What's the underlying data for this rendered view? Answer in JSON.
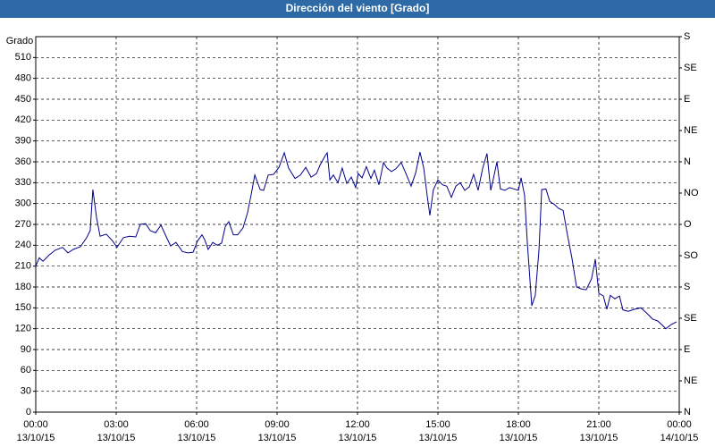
{
  "chart_data": {
    "type": "line",
    "title": "Dirección del viento [Grado]",
    "ylabel": "Grado",
    "x": [
      0,
      0.13,
      0.27,
      0.5,
      0.73,
      1,
      1.2,
      1.4,
      1.67,
      1.9,
      2.03,
      2.13,
      2.27,
      2.4,
      2.63,
      2.87,
      3.03,
      3.27,
      3.5,
      3.73,
      3.9,
      4.1,
      4.27,
      4.47,
      4.67,
      4.87,
      5.03,
      5.23,
      5.47,
      5.67,
      5.87,
      6.03,
      6.2,
      6.3,
      6.43,
      6.6,
      6.77,
      6.93,
      7.07,
      7.2,
      7.37,
      7.53,
      7.73,
      7.9,
      8.03,
      8.17,
      8.37,
      8.5,
      8.67,
      8.87,
      9.07,
      9.27,
      9.43,
      9.67,
      9.87,
      10.07,
      10.27,
      10.47,
      10.6,
      10.8,
      10.87,
      10.97,
      11.1,
      11.27,
      11.43,
      11.6,
      11.77,
      11.93,
      12.03,
      12.17,
      12.33,
      12.5,
      12.63,
      12.8,
      12.97,
      13.1,
      13.27,
      13.43,
      13.63,
      13.83,
      14,
      14.17,
      14.33,
      14.47,
      14.6,
      14.7,
      14.83,
      15,
      15.17,
      15.33,
      15.5,
      15.67,
      15.83,
      16,
      16.17,
      16.33,
      16.5,
      16.67,
      16.83,
      16.97,
      17.07,
      17.2,
      17.33,
      17.5,
      17.67,
      17.83,
      18,
      18.1,
      18.23,
      18.33,
      18.5,
      18.63,
      18.77,
      18.87,
      19.03,
      19.17,
      19.33,
      19.5,
      19.67,
      19.83,
      20,
      20.17,
      20.37,
      20.53,
      20.73,
      20.87,
      21,
      21.17,
      21.3,
      21.43,
      21.6,
      21.77,
      21.9,
      22.1,
      22.33,
      22.57,
      22.77,
      23,
      23.2,
      23.37,
      23.5,
      23.7,
      23.9
    ],
    "series": [
      {
        "name": "Dirección del viento",
        "color": "#00008b",
        "values": [
          210,
          222,
          217,
          226,
          233,
          237,
          229,
          234,
          238,
          251,
          261,
          320,
          279,
          253,
          256,
          246,
          237,
          251,
          253,
          252,
          270,
          271,
          261,
          258,
          269,
          252,
          239,
          244,
          231,
          229,
          230,
          246,
          255,
          248,
          234,
          244,
          240,
          243,
          267,
          274,
          255,
          255,
          265,
          287,
          312,
          341,
          320,
          319,
          341,
          342,
          352,
          373,
          351,
          336,
          341,
          352,
          338,
          343,
          355,
          369,
          373,
          334,
          341,
          330,
          351,
          329,
          338,
          323,
          343,
          337,
          353,
          336,
          348,
          327,
          359,
          351,
          346,
          350,
          359,
          341,
          325,
          344,
          374,
          351,
          311,
          283,
          320,
          334,
          327,
          325,
          309,
          325,
          330,
          319,
          324,
          342,
          319,
          351,
          372,
          319,
          336,
          360,
          321,
          319,
          323,
          321,
          319,
          337,
          312,
          246,
          153,
          168,
          234,
          320,
          321,
          303,
          299,
          293,
          290,
          255,
          221,
          180,
          177,
          176,
          192,
          220,
          171,
          167,
          148,
          168,
          163,
          167,
          147,
          145,
          148,
          150,
          143,
          134,
          131,
          125,
          120,
          126,
          130
        ]
      }
    ],
    "xlim": [
      0,
      24
    ],
    "xticks": [
      {
        "value": 0,
        "label": "00:00",
        "date": "13/10/15"
      },
      {
        "value": 3,
        "label": "03:00",
        "date": "13/10/15"
      },
      {
        "value": 6,
        "label": "06:00",
        "date": "13/10/15"
      },
      {
        "value": 9,
        "label": "09:00",
        "date": "13/10/15"
      },
      {
        "value": 12,
        "label": "12:00",
        "date": "13/10/15"
      },
      {
        "value": 15,
        "label": "15:00",
        "date": "13/10/15"
      },
      {
        "value": 18,
        "label": "18:00",
        "date": "13/10/15"
      },
      {
        "value": 21,
        "label": "21:00",
        "date": "13/10/15"
      },
      {
        "value": 24,
        "label": "00:00",
        "date": "14/10/15"
      }
    ],
    "ylim": [
      0,
      540
    ],
    "yticks": [
      0,
      30,
      60,
      90,
      120,
      150,
      180,
      210,
      240,
      270,
      300,
      330,
      360,
      390,
      420,
      450,
      480,
      510
    ],
    "y2lim": [
      0,
      540
    ],
    "y2ticks": [
      {
        "value": 0,
        "label": "N"
      },
      {
        "value": 45,
        "label": "NE"
      },
      {
        "value": 90,
        "label": "E"
      },
      {
        "value": 135,
        "label": "SE"
      },
      {
        "value": 180,
        "label": "S"
      },
      {
        "value": 225,
        "label": "SO"
      },
      {
        "value": 270,
        "label": "O"
      },
      {
        "value": 315,
        "label": "NO"
      },
      {
        "value": 360,
        "label": "N"
      },
      {
        "value": 405,
        "label": "NE"
      },
      {
        "value": 450,
        "label": "E"
      },
      {
        "value": 495,
        "label": "SE"
      },
      {
        "value": 540,
        "label": "S"
      }
    ],
    "grid": true
  }
}
